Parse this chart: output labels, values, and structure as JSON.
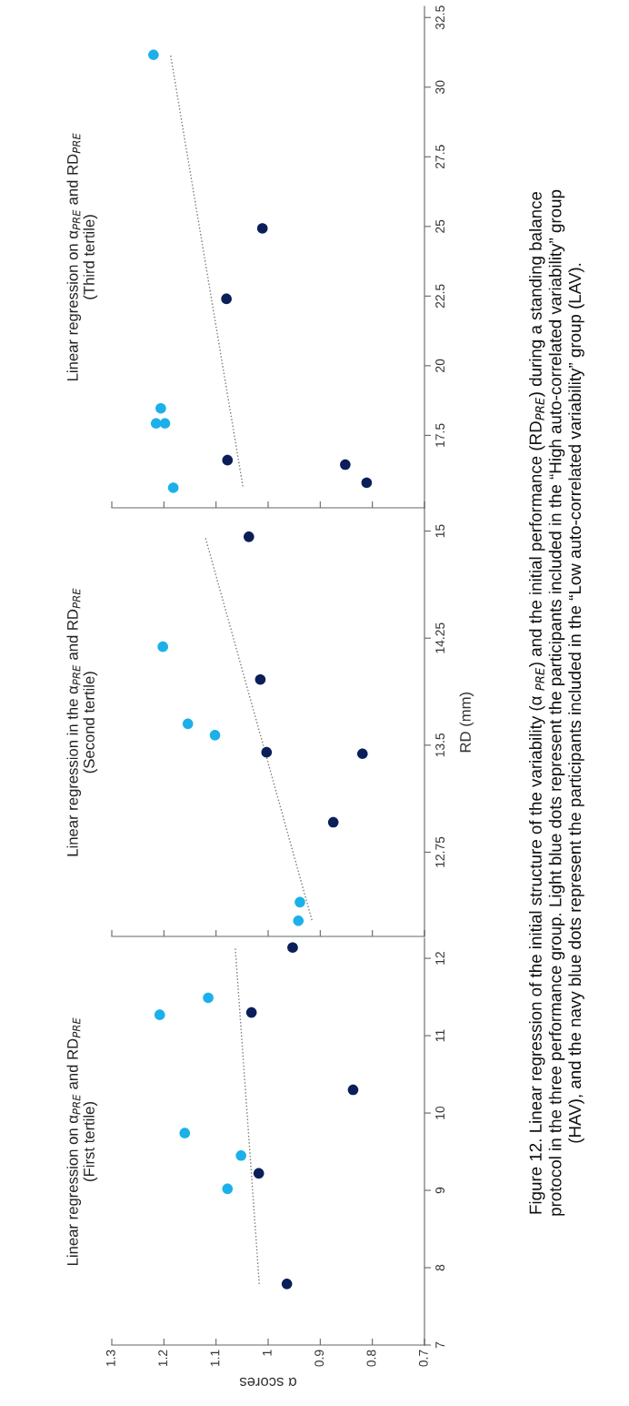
{
  "chart_data": [
    {
      "type": "scatter",
      "title": "Linear regression on α$_{PRE}$ and RD$_{PRE}$\n(First tertile)",
      "xlabel": "α scores",
      "xlim": [
        1.3,
        0.7
      ],
      "xticks": [
        1.3,
        1.2,
        1.1,
        1,
        0.9,
        0.8,
        0.7
      ],
      "ylim": [
        7,
        12.26
      ],
      "yticks": [
        7,
        8,
        9,
        10,
        11,
        12
      ],
      "legend": false,
      "annotations": [
        "Figure 12. Linear regression of the initial structure of the variability (α $_{PRE}$) and the initial performance (RD$_{PRE}$) during a standing balance\nprotocol in the three performance group. Light blue dots represent the participants included in the “High auto-correlated variability” group\n(HAV), and the navy blue dots represent the participants included in the “Low auto-correlated variability” group (LAV)."
      ],
      "series": [
        {
          "marker": "circle",
          "color": "#1cb0ea",
          "x": [
            1.078,
            1.052,
            1.16,
            1.208,
            1.115
          ],
          "values": [
            9.02,
            9.45,
            9.74,
            11.27,
            11.49
          ]
        },
        {
          "marker": "circle",
          "color": "#0a1f5a",
          "x": [
            0.964,
            1.018,
            0.837,
            1.032,
            0.953
          ],
          "values": [
            7.79,
            9.22,
            10.3,
            11.3,
            12.14
          ]
        },
        {
          "type": "line",
          "color": "#777777",
          "line_style": "dotted",
          "x": [
            1.017,
            1.063
          ],
          "values": [
            7.79,
            12.13
          ]
        }
      ]
    },
    {
      "type": "scatter",
      "title": "Linear regression in the α$_{PRE}$ and RD$_{PRE}$\n(Second tertile)",
      "ylabel": "RD (mm)",
      "xlim": [
        1.3,
        0.7
      ],
      "xticks": [
        1.3,
        1.2,
        1.1,
        1,
        0.9,
        0.8,
        0.7
      ],
      "ylim": [
        12.16,
        15.16
      ],
      "yticks": [
        12.75,
        13.5,
        14.25,
        15
      ],
      "tick_labels": "y",
      "legend": false,
      "series": [
        {
          "marker": "circle",
          "color": "#1cb0ea",
          "x": [
            1.202,
            1.154,
            1.102,
            0.939,
            0.942
          ],
          "values": [
            14.19,
            13.65,
            13.57,
            12.4,
            12.27
          ]
        },
        {
          "marker": "circle",
          "color": "#0a1f5a",
          "x": [
            1.037,
            1.015,
            1.003,
            0.819,
            0.875
          ],
          "values": [
            14.96,
            13.96,
            13.45,
            13.44,
            12.96
          ]
        },
        {
          "type": "line",
          "color": "#777777",
          "line_style": "dotted",
          "x": [
            1.12,
            0.915
          ],
          "values": [
            14.95,
            12.26
          ]
        }
      ]
    },
    {
      "type": "scatter",
      "title": "Linear regression on α$_{PRE}$ and RD$_{PRE}$\n(Third tertile)",
      "xlim": [
        1.3,
        0.7
      ],
      "xticks": [
        1.3,
        1.2,
        1.1,
        1,
        0.9,
        0.8,
        0.7
      ],
      "ylim": [
        14.9,
        32.9
      ],
      "yticks": [
        17.5,
        20,
        22.5,
        25,
        27.5,
        30,
        32.5
      ],
      "tick_labels": "y",
      "legend": false,
      "series": [
        {
          "marker": "circle",
          "color": "#1cb0ea",
          "x": [
            1.22,
            1.206,
            1.215,
            1.198,
            1.182
          ],
          "values": [
            31.16,
            18.47,
            17.93,
            17.93,
            15.62
          ]
        },
        {
          "marker": "circle",
          "color": "#0a1f5a",
          "x": [
            1.011,
            1.08,
            1.078,
            0.852,
            0.811
          ],
          "values": [
            24.93,
            22.4,
            16.61,
            16.45,
            15.8
          ]
        },
        {
          "type": "line",
          "color": "#777777",
          "line_style": "dotted",
          "x": [
            1.187,
            1.048
          ],
          "values": [
            31.13,
            15.62
          ]
        }
      ]
    }
  ]
}
